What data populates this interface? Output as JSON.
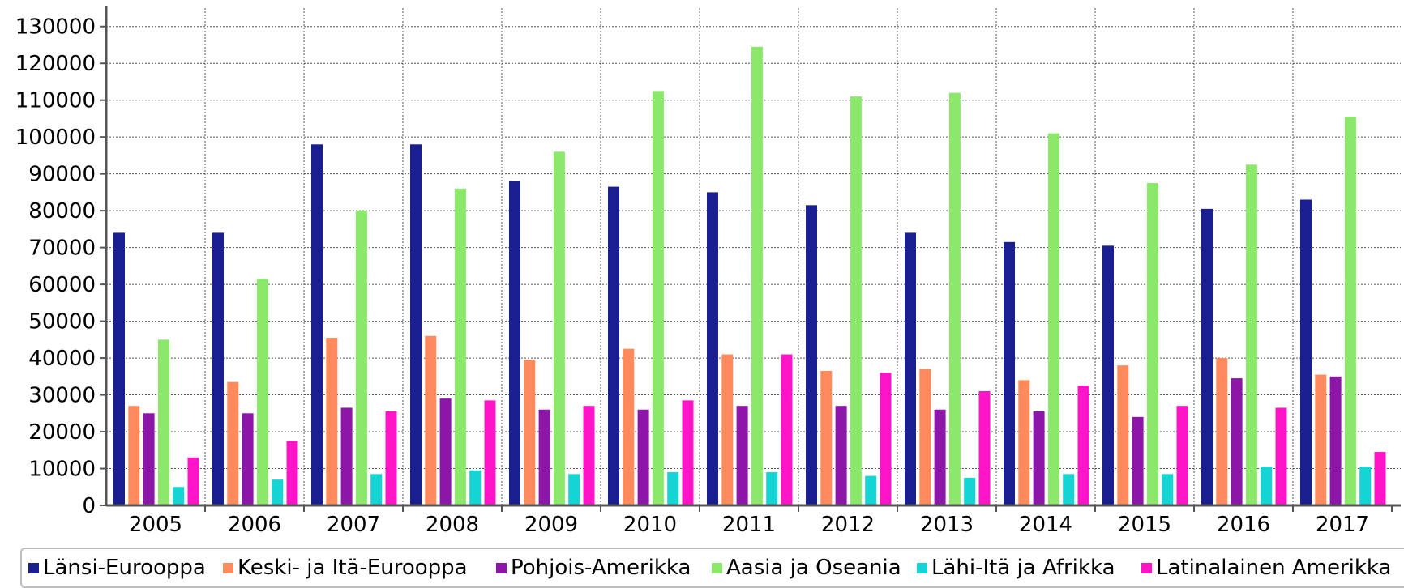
{
  "chart_data": {
    "type": "bar",
    "title": "",
    "xlabel": "",
    "ylabel": "",
    "ylim": [
      0,
      135000
    ],
    "yticks": [
      0,
      10000,
      20000,
      30000,
      40000,
      50000,
      60000,
      70000,
      80000,
      90000,
      100000,
      110000,
      120000,
      130000
    ],
    "grid": true,
    "legend": "bottom",
    "categories": [
      "2005",
      "2006",
      "2007",
      "2008",
      "2009",
      "2010",
      "2011",
      "2012",
      "2013",
      "2014",
      "2015",
      "2016",
      "2017"
    ],
    "series": [
      {
        "name": "Länsi-Eurooppa",
        "color": "#1a1f8f",
        "values": [
          74000,
          74000,
          98000,
          98000,
          88000,
          86500,
          85000,
          81500,
          74000,
          71500,
          70500,
          80500,
          83000
        ]
      },
      {
        "name": "Keski- ja Itä-Eurooppa",
        "color": "#ff8a5c",
        "values": [
          27000,
          33500,
          45500,
          46000,
          39500,
          42500,
          41000,
          36500,
          37000,
          34000,
          38000,
          40000,
          35500
        ]
      },
      {
        "name": "Pohjois-Amerikka",
        "color": "#8c16a8",
        "values": [
          25000,
          25000,
          26500,
          29000,
          26000,
          26000,
          27000,
          27000,
          26000,
          25500,
          24000,
          34500,
          35000
        ]
      },
      {
        "name": "Aasia ja Oseania",
        "color": "#8be86a",
        "values": [
          45000,
          61500,
          80000,
          86000,
          96000,
          112500,
          124500,
          111000,
          112000,
          101000,
          87500,
          92500,
          105500
        ]
      },
      {
        "name": "Lähi-Itä ja Afrikka",
        "color": "#14d4d4",
        "values": [
          5000,
          7000,
          8500,
          9500,
          8500,
          9000,
          9000,
          8000,
          7500,
          8500,
          8500,
          10500,
          10500
        ]
      },
      {
        "name": "Latinalainen Amerikka",
        "color": "#ff14c8",
        "values": [
          13000,
          17500,
          25500,
          28500,
          27000,
          28500,
          41000,
          36000,
          31000,
          32500,
          27000,
          26500,
          14500
        ]
      }
    ]
  }
}
